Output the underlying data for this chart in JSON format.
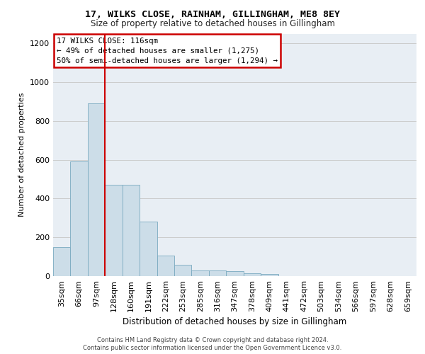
{
  "title1": "17, WILKS CLOSE, RAINHAM, GILLINGHAM, ME8 8EY",
  "title2": "Size of property relative to detached houses in Gillingham",
  "xlabel": "Distribution of detached houses by size in Gillingham",
  "ylabel": "Number of detached properties",
  "footer1": "Contains HM Land Registry data © Crown copyright and database right 2024.",
  "footer2": "Contains public sector information licensed under the Open Government Licence v3.0.",
  "categories": [
    "35sqm",
    "66sqm",
    "97sqm",
    "128sqm",
    "160sqm",
    "191sqm",
    "222sqm",
    "253sqm",
    "285sqm",
    "316sqm",
    "347sqm",
    "378sqm",
    "409sqm",
    "441sqm",
    "472sqm",
    "503sqm",
    "534sqm",
    "566sqm",
    "597sqm",
    "628sqm",
    "659sqm"
  ],
  "values": [
    150,
    590,
    890,
    470,
    470,
    280,
    105,
    60,
    30,
    30,
    25,
    15,
    10,
    0,
    0,
    0,
    0,
    0,
    0,
    0,
    0
  ],
  "bar_color": "#ccdde8",
  "bar_edge_color": "#7aaac0",
  "vline_color": "#cc0000",
  "annotation_text": "17 WILKS CLOSE: 116sqm\n← 49% of detached houses are smaller (1,275)\n50% of semi-detached houses are larger (1,294) →",
  "annotation_box_color": "#ffffff",
  "annotation_box_edge": "#cc0000",
  "ylim": [
    0,
    1250
  ],
  "yticks": [
    0,
    200,
    400,
    600,
    800,
    1000,
    1200
  ],
  "grid_color": "#cccccc",
  "bg_color": "#e8eef4",
  "figsize": [
    6.0,
    5.0
  ],
  "dpi": 100
}
